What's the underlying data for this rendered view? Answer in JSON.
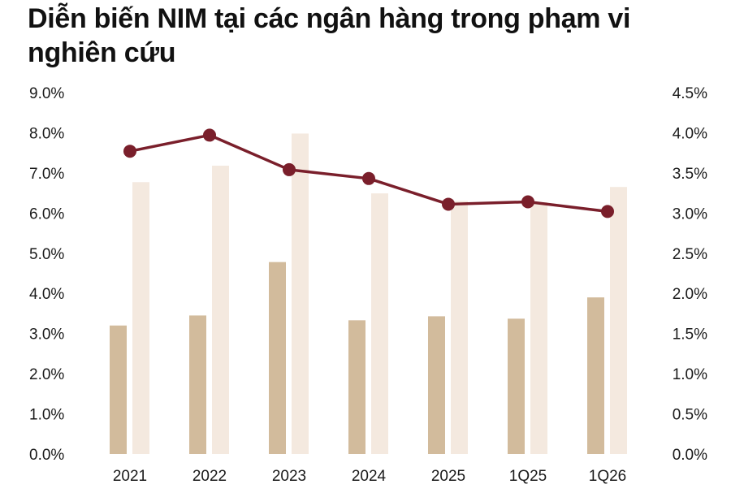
{
  "chart_data": {
    "type": "bar",
    "title": "Diễn biến NIM tại các ngân hàng trong phạm vi nghiên cứu",
    "categories": [
      "2021",
      "2022",
      "2023",
      "2024",
      "2025",
      "1Q25",
      "1Q26"
    ],
    "left_axis": {
      "ylim": [
        0,
        9
      ],
      "ticks": [
        "0.0%",
        "1.0%",
        "2.0%",
        "3.0%",
        "4.0%",
        "5.0%",
        "6.0%",
        "7.0%",
        "8.0%",
        "9.0%"
      ]
    },
    "right_axis": {
      "ylim": [
        0,
        4.5
      ],
      "ticks": [
        "0.0%",
        "0.5%",
        "1.0%",
        "1.5%",
        "2.0%",
        "2.5%",
        "3.0%",
        "3.5%",
        "4.0%",
        "4.5%"
      ]
    },
    "series": [
      {
        "type": "bar",
        "axis": "left",
        "color": "#d2bb9c",
        "values": [
          3.2,
          3.45,
          4.78,
          3.33,
          3.43,
          3.37,
          3.9
        ]
      },
      {
        "type": "bar",
        "axis": "left",
        "color": "#f4e9df",
        "values": [
          6.77,
          7.18,
          7.98,
          6.49,
          6.3,
          6.27,
          6.65
        ]
      },
      {
        "type": "line",
        "axis": "right",
        "color": "#7a1f2b",
        "values": [
          3.77,
          3.97,
          3.54,
          3.43,
          3.11,
          3.14,
          3.02
        ]
      }
    ],
    "grid": false,
    "legend": "none"
  }
}
